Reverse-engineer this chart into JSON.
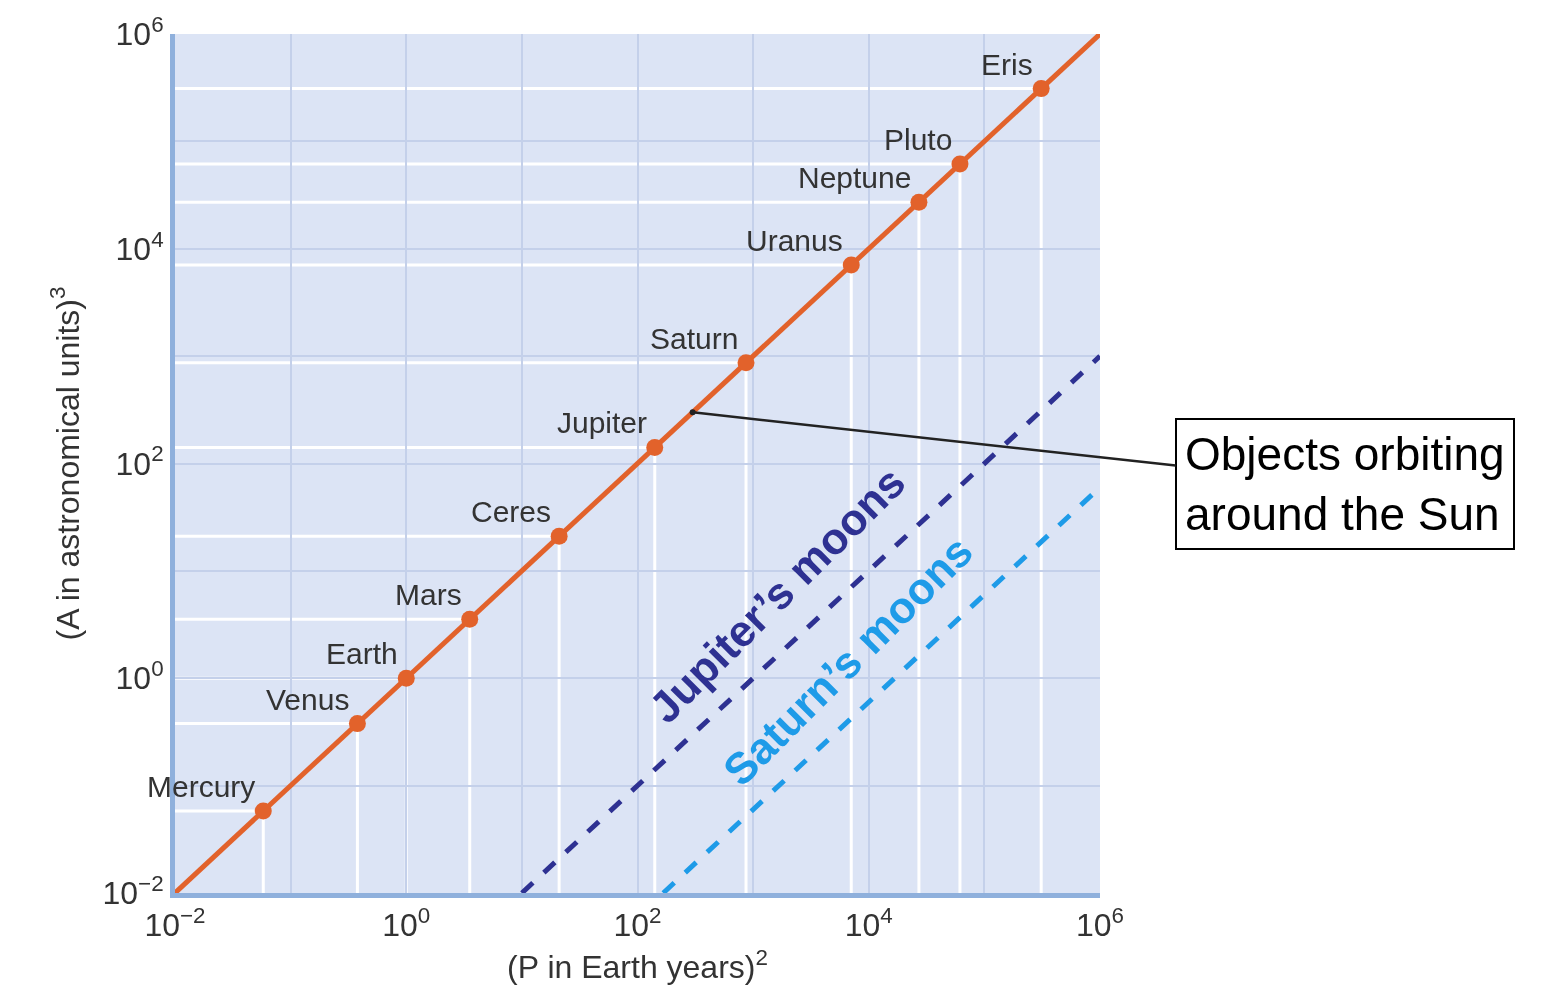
{
  "chart_data": {
    "type": "scatter",
    "xlabel": "(P in Earth years)$^{2}$",
    "ylabel": "(A in astronomical units)$^{3}$",
    "log": "xy",
    "grid": true,
    "xlim": [
      0.01,
      1000000
    ],
    "ylim": [
      0.01,
      1000000
    ],
    "xticks": [
      {
        "value": 0.01,
        "label": "10$^{−2}$"
      },
      {
        "value": 1,
        "label": "10$^{0}$"
      },
      {
        "value": 100,
        "label": "10$^{2}$"
      },
      {
        "value": 10000,
        "label": "10$^{4}$"
      },
      {
        "value": 1000000,
        "label": "10$^{6}$"
      }
    ],
    "yticks": [
      {
        "value": 0.01,
        "label": "10$^{−2}$"
      },
      {
        "value": 1,
        "label": "10$^{0}$"
      },
      {
        "value": 100,
        "label": "10$^{2}$"
      },
      {
        "value": 10000,
        "label": "10$^{4}$"
      },
      {
        "value": 1000000,
        "label": "10$^{6}$"
      }
    ],
    "series": [
      {
        "type": "line",
        "color": "#e2622b",
        "x": [
          0.01,
          1000000
        ],
        "values": [
          0.01,
          1000000
        ],
        "line_style": "solid",
        "marker": "none"
      },
      {
        "marker": "circle",
        "color": "#e2622b",
        "x": [
          0.058,
          0.378,
          1,
          3.54,
          21,
          141,
          868,
          7056,
          27160,
          61500,
          310000
        ],
        "values": [
          0.058,
          0.378,
          1,
          3.54,
          21,
          141,
          868,
          7056,
          27160,
          61500,
          310000
        ]
      },
      {
        "type": "line",
        "name": "Jupiter’s moons",
        "color": "#2e3192",
        "x": [
          10,
          1000000
        ],
        "values": [
          0.01,
          1000
        ],
        "line_style": "dashed",
        "marker": "none"
      },
      {
        "type": "line",
        "name": "Saturn’s moons",
        "color": "#1e9be8",
        "x": [
          167,
          1000000
        ],
        "values": [
          0.01,
          60
        ],
        "line_style": "dashed",
        "marker": "none"
      }
    ],
    "annotations": [
      {
        "text": "Mercury",
        "x": 0.058,
        "y": 0.058
      },
      {
        "text": "Venus",
        "x": 0.378,
        "y": 0.378
      },
      {
        "text": "Earth",
        "x": 1,
        "y": 1
      },
      {
        "text": "Mars",
        "x": 3.54,
        "y": 3.54
      },
      {
        "text": "Ceres",
        "x": 21,
        "y": 21
      },
      {
        "text": "Jupiter",
        "x": 141,
        "y": 141
      },
      {
        "text": "Saturn",
        "x": 868,
        "y": 868
      },
      {
        "text": "Uranus",
        "x": 7056,
        "y": 7056
      },
      {
        "text": "Neptune",
        "x": 27160,
        "y": 27160
      },
      {
        "text": "Pluto",
        "x": 61500,
        "y": 61500
      },
      {
        "text": "Eris",
        "x": 310000,
        "y": 310000
      },
      {
        "text": "Objects orbiting\naround the Sun",
        "x": 300,
        "y": 300
      }
    ]
  }
}
